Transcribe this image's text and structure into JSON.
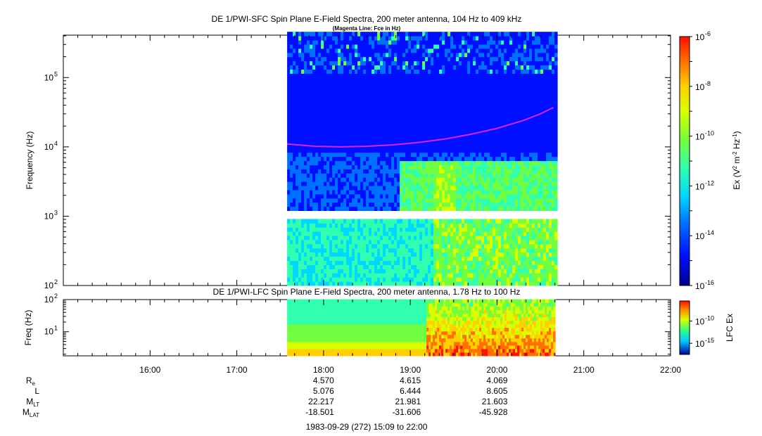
{
  "chart_data": [
    {
      "type": "heatmap",
      "title": "DE 1/PWI-SFC  Spin Plane E-Field Spectra, 200 meter antenna, 104 Hz to 409 kHz",
      "subtitle": "(Magenta Line: Fce in Hz)",
      "ylabel": "Frequency (Hz)",
      "yscale": "log",
      "ylim": [
        100,
        409000
      ],
      "yticks": [
        {
          "value": 100,
          "mantissa": "10",
          "exp": "2"
        },
        {
          "value": 1000,
          "mantissa": "10",
          "exp": "3"
        },
        {
          "value": 10000,
          "mantissa": "10",
          "exp": "4"
        },
        {
          "value": 100000,
          "mantissa": "10",
          "exp": "5"
        }
      ],
      "xlim_hours": [
        15.15,
        22.0
      ],
      "data_span_hours": [
        17.58,
        20.67
      ],
      "colorbar": {
        "label_parts": [
          {
            "t": "Ex (V"
          },
          {
            "t": "2",
            "sup": true
          },
          {
            "t": " m"
          },
          {
            "t": "-2",
            "sup": true
          },
          {
            "t": " Hz"
          },
          {
            "t": "-1",
            "sup": true
          },
          {
            "t": ")"
          }
        ],
        "scale": "log",
        "range": [
          1e-16,
          1e-06
        ],
        "ticks": [
          {
            "value": 1e-06,
            "mantissa": "10",
            "exp": "-6"
          },
          {
            "value": 1e-08,
            "mantissa": "10",
            "exp": "-8"
          },
          {
            "value": 1e-10,
            "mantissa": "10",
            "exp": "-10"
          },
          {
            "value": 1e-12,
            "mantissa": "10",
            "exp": "-12"
          },
          {
            "value": 1e-14,
            "mantissa": "10",
            "exp": "-14"
          },
          {
            "value": 1e-16,
            "mantissa": "10",
            "exp": "-16"
          }
        ]
      },
      "fce_line": {
        "color": "#e020e0",
        "time_hours": [
          17.58,
          17.9,
          18.2,
          18.5,
          18.8,
          19.1,
          19.4,
          19.7,
          20.0,
          20.3,
          20.5,
          20.65
        ],
        "freq_hz": [
          11000,
          10200,
          10000,
          10200,
          10700,
          11600,
          13000,
          15200,
          18500,
          24000,
          30000,
          37000
        ]
      },
      "colormap": [
        "#00008c",
        "#0010ff",
        "#0070ff",
        "#00d8ff",
        "#30ffb0",
        "#70ff40",
        "#d8ff00",
        "#ffd000",
        "#ff7000",
        "#ff1000"
      ]
    },
    {
      "type": "heatmap",
      "title": "DE 1/PWI-LFC  Spin Plane E-Field Spectra, 200 meter antenna, 1.78 Hz to 100 Hz",
      "ylabel": "Freq (Hz)",
      "yscale": "log",
      "ylim": [
        1.78,
        100
      ],
      "yticks": [
        {
          "value": 10,
          "mantissa": "10",
          "exp": "1"
        },
        {
          "value": 100,
          "mantissa": "10",
          "exp": "2"
        }
      ],
      "colorbar": {
        "label": "LFC Ex",
        "ticks": [
          {
            "value": 1e-10,
            "mantissa": "10",
            "exp": "-10"
          },
          {
            "value": 1e-15,
            "mantissa": "10",
            "exp": "-15"
          }
        ]
      }
    }
  ],
  "xaxis": {
    "tick_labels": [
      {
        "hour": 16,
        "label": "16:00"
      },
      {
        "hour": 17,
        "label": "17:00"
      },
      {
        "hour": 18,
        "label": "18:00"
      },
      {
        "hour": 19,
        "label": "19:00"
      },
      {
        "hour": 20,
        "label": "20:00"
      },
      {
        "hour": 21,
        "label": "21:00"
      },
      {
        "hour": 22,
        "label": "22:00"
      }
    ]
  },
  "ephemeris": [
    {
      "label": "R",
      "sub": "e",
      "values": [
        "4.570",
        "4.615",
        "4.069"
      ]
    },
    {
      "label": "L",
      "sub": "",
      "values": [
        "5.076",
        "6.444",
        "8.605"
      ]
    },
    {
      "label": "M",
      "sub": "LT",
      "values": [
        "22.217",
        "21.981",
        "21.603"
      ]
    },
    {
      "label": "M",
      "sub": "LAT",
      "values": [
        "-18.501",
        "-31.606",
        "-45.928"
      ]
    }
  ],
  "footer": "1983-09-29 (272) 15:09 to 22:00"
}
